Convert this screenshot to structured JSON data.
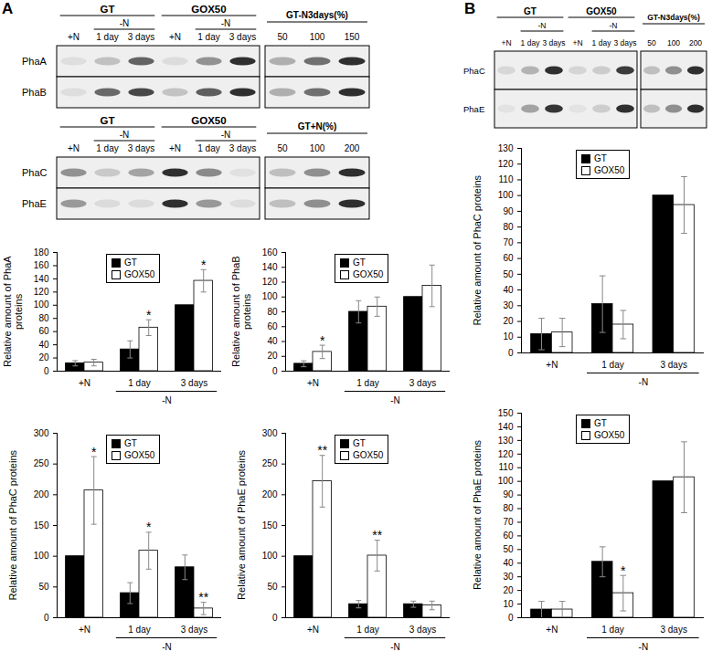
{
  "panel_labels": [
    "A",
    "B"
  ],
  "blots": [
    {
      "panel": "A",
      "groups": [
        "GT",
        "GOX50"
      ],
      "condition": "-N",
      "lanes": [
        "+N",
        "1 day",
        "3 days"
      ],
      "standard_label": "GT-N3days(%)",
      "standard_lanes": [
        50,
        100,
        150
      ],
      "rows": [
        "PhaA",
        "PhaB"
      ]
    },
    {
      "panel": "A",
      "groups": [
        "GT",
        "GOX50"
      ],
      "condition": "-N",
      "lanes": [
        "+N",
        "1 day",
        "3 days"
      ],
      "standard_label": "GT+N(%)",
      "standard_lanes": [
        50,
        100,
        200
      ],
      "rows": [
        "PhaC",
        "PhaE"
      ]
    },
    {
      "panel": "B",
      "groups": [
        "GT",
        "GOX50"
      ],
      "condition": "-N",
      "lanes": [
        "+N",
        "1 day",
        "3 days"
      ],
      "standard_label": "GT-N3days(%)",
      "standard_lanes": [
        50,
        100,
        200
      ],
      "rows": [
        "PhaC",
        "PhaE"
      ]
    }
  ],
  "chart_data": [
    {
      "type": "bar",
      "panel": "A",
      "y_label": "Relative amount of PhaA proteins",
      "categories": [
        "+N",
        "1 day",
        "3 days"
      ],
      "category_groups": [
        {
          "label": "-N",
          "categories": [
            "1 day",
            "3 days"
          ]
        }
      ],
      "series": [
        {
          "name": "GT",
          "color": "#000000",
          "values": [
            12,
            33,
            100
          ],
          "errors": [
            4,
            13,
            0
          ]
        },
        {
          "name": "GOX50",
          "color": "#ffffff",
          "values": [
            13,
            66,
            137
          ],
          "errors": [
            5,
            12,
            17
          ],
          "annotations": [
            null,
            "*",
            "*"
          ]
        }
      ],
      "ylim": [
        0,
        180
      ],
      "yticks": [
        0,
        20,
        40,
        60,
        80,
        100,
        120,
        140,
        160,
        180
      ],
      "grid": false,
      "legend": "top"
    },
    {
      "type": "bar",
      "panel": "A",
      "y_label": "Relative amount of PhaB proteins",
      "categories": [
        "+N",
        "1 day",
        "3 days"
      ],
      "category_groups": [
        {
          "label": "-N",
          "categories": [
            "1 day",
            "3 days"
          ]
        }
      ],
      "series": [
        {
          "name": "GT",
          "color": "#000000",
          "values": [
            10,
            80,
            100
          ],
          "errors": [
            4,
            15,
            0
          ]
        },
        {
          "name": "GOX50",
          "color": "#ffffff",
          "values": [
            26,
            87,
            115
          ],
          "errors": [
            9,
            13,
            28
          ],
          "annotations": [
            "*",
            null,
            null
          ]
        }
      ],
      "ylim": [
        0,
        160
      ],
      "yticks": [
        0,
        20,
        40,
        60,
        80,
        100,
        120,
        140,
        160
      ],
      "grid": false,
      "legend": "top"
    },
    {
      "type": "bar",
      "panel": "A",
      "y_label": "Relative amount of PhaC proteins",
      "categories": [
        "+N",
        "1 day",
        "3 days"
      ],
      "category_groups": [
        {
          "label": "-N",
          "categories": [
            "1 day",
            "3 days"
          ]
        }
      ],
      "series": [
        {
          "name": "GT",
          "color": "#000000",
          "values": [
            100,
            40,
            82
          ],
          "errors": [
            0,
            17,
            20
          ]
        },
        {
          "name": "GOX50",
          "color": "#ffffff",
          "values": [
            207,
            109,
            15
          ],
          "errors": [
            55,
            30,
            10
          ],
          "annotations": [
            "*",
            "*",
            "**"
          ]
        }
      ],
      "ylim": [
        0,
        300
      ],
      "yticks": [
        0,
        50,
        100,
        150,
        200,
        250,
        300
      ],
      "grid": false,
      "legend": "top"
    },
    {
      "type": "bar",
      "panel": "A",
      "y_label": "Relative amount of PhaE proteins",
      "categories": [
        "+N",
        "1 day",
        "3 days"
      ],
      "category_groups": [
        {
          "label": "-N",
          "categories": [
            "1 day",
            "3 days"
          ]
        }
      ],
      "series": [
        {
          "name": "GT",
          "color": "#000000",
          "values": [
            100,
            22,
            22
          ],
          "errors": [
            0,
            6,
            5
          ]
        },
        {
          "name": "GOX50",
          "color": "#ffffff",
          "values": [
            222,
            101,
            20
          ],
          "errors": [
            42,
            25,
            7
          ],
          "annotations": [
            "**",
            "**",
            null
          ]
        }
      ],
      "ylim": [
        0,
        300
      ],
      "yticks": [
        0,
        50,
        100,
        150,
        200,
        250,
        300
      ],
      "grid": false,
      "legend": "top"
    },
    {
      "type": "bar",
      "panel": "B",
      "y_label": "Relative amount of PhaC proteins",
      "categories": [
        "+N",
        "1 day",
        "3 days"
      ],
      "category_groups": [
        {
          "label": "-N",
          "categories": [
            "1 day",
            "3 days"
          ]
        }
      ],
      "series": [
        {
          "name": "GT",
          "color": "#000000",
          "values": [
            12,
            31,
            100
          ],
          "errors": [
            10,
            18,
            0
          ]
        },
        {
          "name": "GOX50",
          "color": "#ffffff",
          "values": [
            13,
            18,
            94
          ],
          "errors": [
            9,
            9,
            18
          ]
        }
      ],
      "ylim": [
        0,
        130
      ],
      "yticks": [
        0,
        10,
        20,
        30,
        40,
        50,
        60,
        70,
        80,
        90,
        100,
        110,
        120,
        130
      ],
      "grid": false,
      "legend": "top"
    },
    {
      "type": "bar",
      "panel": "B",
      "y_label": "Relative amount of PhaE proteins",
      "categories": [
        "+N",
        "1 day",
        "3 days"
      ],
      "category_groups": [
        {
          "label": "-N",
          "categories": [
            "1 day",
            "3 days"
          ]
        }
      ],
      "series": [
        {
          "name": "GT",
          "color": "#000000",
          "values": [
            6,
            41,
            100
          ],
          "errors": [
            6,
            11,
            0
          ]
        },
        {
          "name": "GOX50",
          "color": "#ffffff",
          "values": [
            6,
            18,
            103
          ],
          "errors": [
            6,
            13,
            26
          ],
          "annotations": [
            null,
            "*",
            null
          ]
        }
      ],
      "ylim": [
        0,
        150
      ],
      "yticks": [
        0,
        10,
        20,
        30,
        40,
        50,
        60,
        70,
        80,
        90,
        100,
        110,
        120,
        130,
        140,
        150
      ],
      "grid": false,
      "legend": "top"
    }
  ]
}
